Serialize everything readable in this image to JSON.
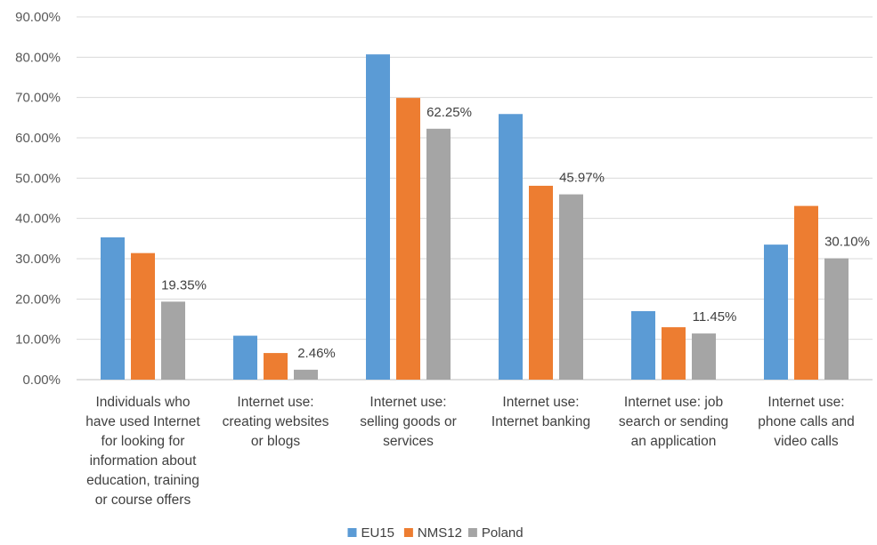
{
  "chart_data": {
    "type": "bar",
    "title": "",
    "xlabel": "",
    "ylabel": "",
    "ylim": [
      0,
      90
    ],
    "ytick_step": 10,
    "ytick_format": "percent_2dp",
    "grid": true,
    "legend_position": "bottom",
    "categories": [
      [
        "Individuals who",
        "have used Internet",
        "for looking for",
        "information about",
        "education, training",
        "or course offers"
      ],
      [
        "Internet use:",
        "creating websites",
        "or blogs"
      ],
      [
        "Internet use:",
        "selling goods or",
        "services"
      ],
      [
        "Internet use:",
        "Internet banking"
      ],
      [
        "Internet use: job",
        "search or sending",
        "an application"
      ],
      [
        "Internet use:",
        "phone calls and",
        "video calls"
      ]
    ],
    "series": [
      {
        "name": "EU15",
        "color": "#5B9BD5",
        "values": [
          35.3,
          10.9,
          80.7,
          65.9,
          17.0,
          33.5
        ]
      },
      {
        "name": "NMS12",
        "color": "#ED7D31",
        "values": [
          31.4,
          6.6,
          69.9,
          48.1,
          13.0,
          43.1
        ]
      },
      {
        "name": "Poland",
        "color": "#A5A5A5",
        "values": [
          19.35,
          2.46,
          62.25,
          45.97,
          11.45,
          30.1
        ],
        "data_labels": [
          "19.35%",
          "2.46%",
          "62.25%",
          "45.97%",
          "11.45%",
          "30.10%"
        ]
      }
    ]
  }
}
